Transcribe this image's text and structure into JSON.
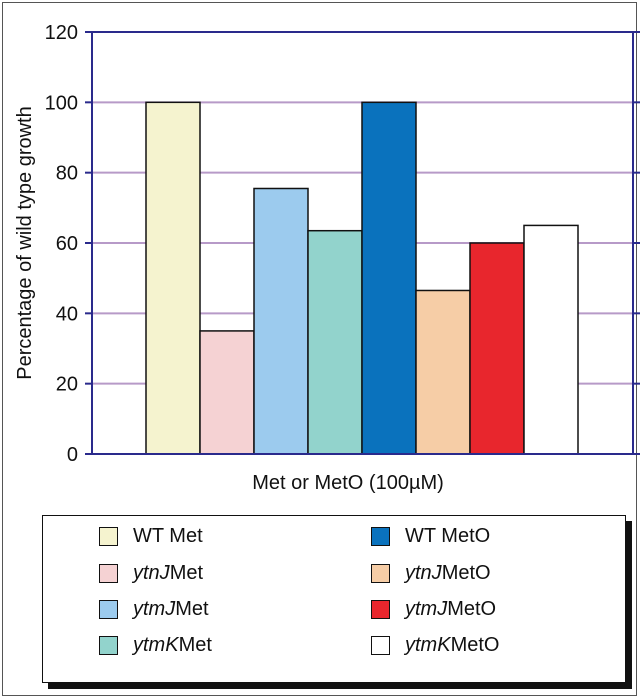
{
  "chart_data": {
    "type": "bar",
    "ylabel": "Percentage of wild type growth",
    "xlabel": "Met or MetO (100µM)",
    "ylim": [
      0,
      120
    ],
    "yticks": [
      0,
      20,
      40,
      60,
      80,
      100,
      120
    ],
    "grid": true,
    "series": [
      {
        "name": "WT Met",
        "value": 100,
        "color": "#f5f3cf"
      },
      {
        "name": "ytnJ Met",
        "value": 35,
        "color": "#f5d2d3"
      },
      {
        "name": "ytmJ Met",
        "value": 75.5,
        "color": "#9ccbee"
      },
      {
        "name": "ytmK Met",
        "value": 63.5,
        "color": "#92d3cc"
      },
      {
        "name": "WT MetO",
        "value": 100,
        "color": "#0a72bd"
      },
      {
        "name": "ytnJ MetO",
        "value": 46.5,
        "color": "#f6cda6"
      },
      {
        "name": "ytmJ MetO",
        "value": 60,
        "color": "#e8262d"
      },
      {
        "name": "ytmK MetO",
        "value": 65,
        "color": "#ffffff"
      }
    ],
    "legend": {
      "placement": "bottom",
      "entries": [
        {
          "gene": "",
          "suffix": "WT Met"
        },
        {
          "gene": "ytnJ",
          "suffix": " Met"
        },
        {
          "gene": "ytmJ",
          "suffix": " Met"
        },
        {
          "gene": "ytmK",
          "suffix": " Met"
        },
        {
          "gene": "",
          "suffix": "WT MetO"
        },
        {
          "gene": "ytnJ",
          "suffix": " MetO"
        },
        {
          "gene": "ytmJ",
          "suffix": " MetO"
        },
        {
          "gene": "ytmK",
          "suffix": " MetO"
        }
      ]
    },
    "colors": {
      "plot_border": "#2a2a8c",
      "gridline": "#b79ac8"
    }
  }
}
